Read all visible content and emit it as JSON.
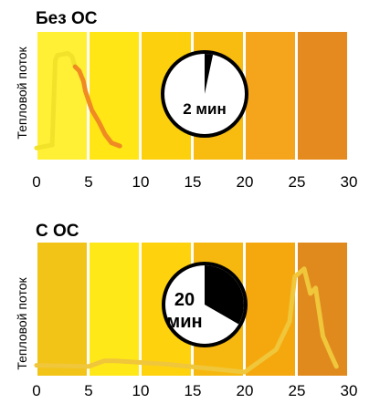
{
  "chart_data": [
    {
      "type": "line",
      "title": "Без ОС",
      "ylabel": "Тепловой поток",
      "xlabel": "",
      "xlim": [
        0,
        30
      ],
      "x_ticks": [
        "0",
        "5",
        "10",
        "15",
        "20",
        "25",
        "30"
      ],
      "grid": false,
      "band_colors": [
        "#FFF035",
        "#FFE614",
        "#FCD00C",
        "#F8BB10",
        "#F5A51B",
        "#E58A1E"
      ],
      "clock": {
        "text": "2 мин",
        "minutes": 2
      },
      "series": [
        {
          "color_early": "#F2E22A",
          "color_late": "#F08A22",
          "points": [
            [
              0.0,
              0.05
            ],
            [
              1.0,
              0.07
            ],
            [
              1.5,
              0.08
            ],
            [
              1.8,
              0.9
            ],
            [
              2.0,
              0.95
            ],
            [
              3.0,
              0.97
            ],
            [
              3.4,
              0.94
            ],
            [
              3.7,
              0.84
            ],
            [
              4.1,
              0.8
            ],
            [
              4.5,
              0.7
            ],
            [
              4.7,
              0.6
            ],
            [
              5.3,
              0.42
            ],
            [
              6.0,
              0.3
            ],
            [
              6.6,
              0.18
            ],
            [
              7.2,
              0.1
            ],
            [
              8.0,
              0.07
            ]
          ]
        }
      ]
    },
    {
      "type": "line",
      "title": "С ОС",
      "ylabel": "Тепловой поток",
      "xlabel": "",
      "xlim": [
        0,
        30
      ],
      "x_ticks": [
        "0",
        "5",
        "10",
        "15",
        "20",
        "25",
        "30"
      ],
      "grid": false,
      "band_colors": [
        "#F2C418",
        "#FFE818",
        "#FFD20E",
        "#F6B80E",
        "#F5A80E",
        "#E08A1E"
      ],
      "clock": {
        "text_line1": "20",
        "text_line2": "мин",
        "minutes": 20
      },
      "series": [
        {
          "color": "#F0C63A",
          "points": [
            [
              0.0,
              0.06
            ],
            [
              5.0,
              0.05
            ],
            [
              6.5,
              0.1
            ],
            [
              7.5,
              0.1
            ],
            [
              12.5,
              0.07
            ],
            [
              20.0,
              0.0
            ],
            [
              23.0,
              0.2
            ],
            [
              24.3,
              0.45
            ],
            [
              24.8,
              0.85
            ],
            [
              25.7,
              0.92
            ],
            [
              26.3,
              0.7
            ],
            [
              26.8,
              0.75
            ],
            [
              27.5,
              0.32
            ],
            [
              28.3,
              0.15
            ],
            [
              28.8,
              0.05
            ]
          ]
        }
      ]
    }
  ]
}
